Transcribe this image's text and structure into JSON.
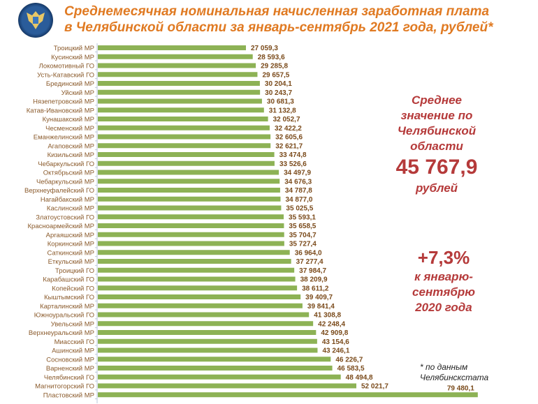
{
  "header": {
    "title_line1": "Среднемесячная номинальная начисленная заработная плата",
    "title_line2": "в Челябинской области за январь-сентябрь 2021 года, рублей*",
    "logo": "emblem-double-headed-eagle"
  },
  "side": {
    "avg_line1": "Среднее",
    "avg_line2": "значение по",
    "avg_line3": "Челябинской",
    "avg_line4": "области",
    "avg_value": "45 767,9",
    "avg_unit": "рублей",
    "growth_value": "+7,3%",
    "growth_line1": "к январю-",
    "growth_line2": "сентябрю",
    "growth_line3": "2020 года",
    "note_line1": "* по данным",
    "note_line2": "Челябинскстата"
  },
  "colors": {
    "bar": "#8db255",
    "label": "#8a5a2b",
    "value": "#7a4a1a",
    "accent": "#b53a3a",
    "title": "#e07a22"
  },
  "chart_data": {
    "type": "bar",
    "orientation": "horizontal",
    "title": "",
    "xlabel": "",
    "ylabel": "",
    "categories": [
      "Троицкий МР",
      "Кусинский МР",
      "Локомотивный ГО",
      "Усть-Катавский ГО",
      "Брединский МР",
      "Уйский МР",
      "Нязепетровский МР",
      "Катав-Ивановский МР",
      "Кунашакский МР",
      "Чесменский МР",
      "Еманжелинский МР",
      "Агаповский МР",
      "Кизильский МР",
      "Чебаркульский ГО",
      "Октябрьский МР",
      "Чебаркульский МР",
      "Верхнеуфалейский ГО",
      "Нагайбакский МР",
      "Каслинский МР",
      "Златоустовский ГО",
      "Красноармейский МР",
      "Аргаяшский МР",
      "Коркинский МР",
      "Саткинский МР",
      "Еткульский МР",
      "Троицкий ГО",
      "Карабашский ГО",
      "Копейский ГО",
      "Кыштымский ГО",
      "Карталинский МР",
      "Южноуральский ГО",
      "Увельский МР",
      "Верхнеуральский МР",
      "Миасский ГО",
      "Ашинский МР",
      "Сосновский МР",
      "Варненский МР",
      "Челябинский ГО",
      "Магнитогорский ГО",
      "Пластовский МР"
    ],
    "values": [
      27059.3,
      28593.6,
      29285.8,
      29657.5,
      30204.1,
      30243.7,
      30681.3,
      31132.8,
      32052.7,
      32422.2,
      32605.6,
      32621.7,
      33474.8,
      33526.6,
      34497.9,
      34676.3,
      34787.8,
      34877.0,
      35025.5,
      35593.1,
      35658.5,
      35704.7,
      35727.4,
      36964.0,
      37277.4,
      37984.7,
      38209.9,
      38611.2,
      39409.7,
      39841.4,
      41308.8,
      42248.4,
      42909.8,
      43154.6,
      43246.1,
      46226.7,
      46583.5,
      48494.8,
      52021.7,
      79480.1
    ],
    "labels": [
      "27 059,3",
      "28 593,6",
      "29 285,8",
      "29 657,5",
      "30 204,1",
      "30 243,7",
      "30 681,3",
      "31 132,8",
      "32 052,7",
      "32 422,2",
      "32 605,6",
      "32 621,7",
      "33 474,8",
      "33 526,6",
      "34 497,9",
      "34 676,3",
      "34 787,8",
      "34 877,0",
      "35 025,5",
      "35 593,1",
      "35 658,5",
      "35 704,7",
      "35 727,4",
      "36 964,0",
      "37 277,4",
      "37 984,7",
      "38 209,9",
      "38 611,2",
      "39 409,7",
      "39 841,4",
      "41 308,8",
      "42 248,4",
      "42 909,8",
      "43 154,6",
      "43 246,1",
      "46 226,7",
      "46 583,5",
      "48 494,8",
      "52 021,7",
      "79 480,1"
    ],
    "grid": false
  }
}
